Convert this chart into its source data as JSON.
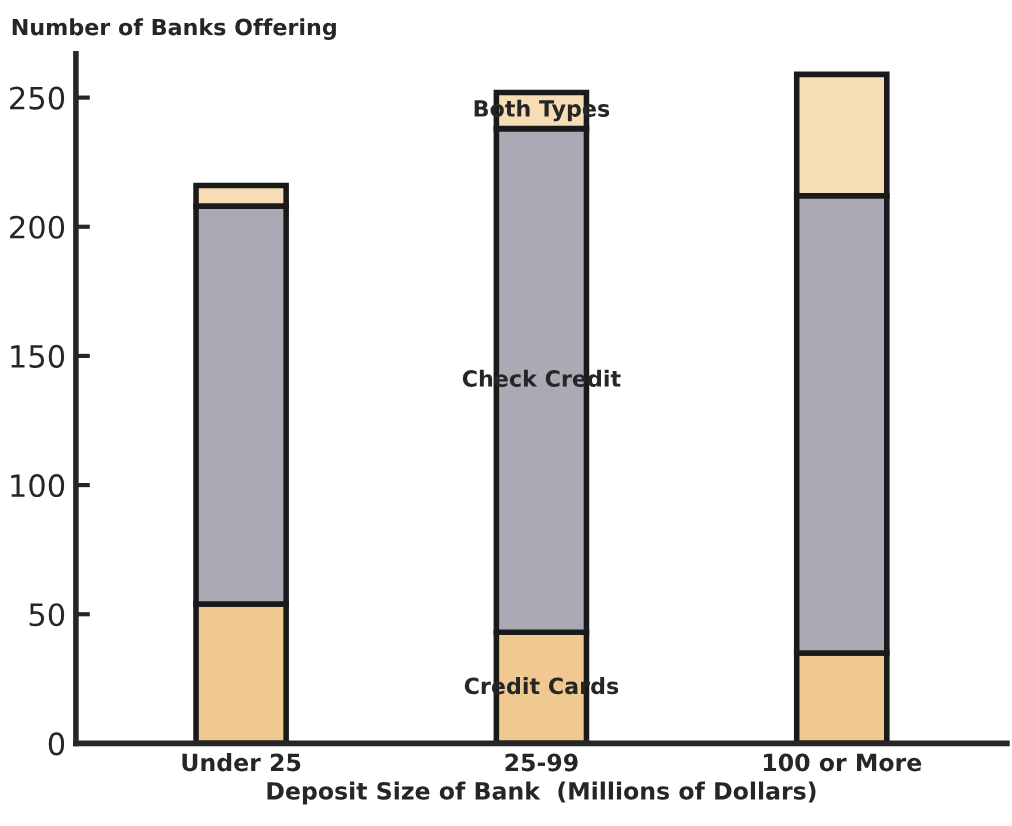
{
  "chart_data": {
    "type": "bar",
    "stacked": true,
    "ylabel": "Number of Banks Offering",
    "xlabel": "Deposit Size of Bank  (Millions of Dollars)",
    "categories": [
      "Under 25",
      "25-99",
      "100 or More"
    ],
    "series": [
      {
        "name": "Credit Cards",
        "color": "#f0c990",
        "values": [
          54,
          43,
          35
        ]
      },
      {
        "name": "Check Credit",
        "color": "#a9aab3",
        "values": [
          154,
          195,
          177
        ]
      },
      {
        "name": "Both Types",
        "color": "#f6ddb6",
        "values": [
          8,
          14,
          47
        ]
      }
    ],
    "ylim": [
      0,
      267
    ],
    "yticks": [
      0,
      50,
      100,
      150,
      200,
      250
    ],
    "grid": false,
    "legend": false
  }
}
